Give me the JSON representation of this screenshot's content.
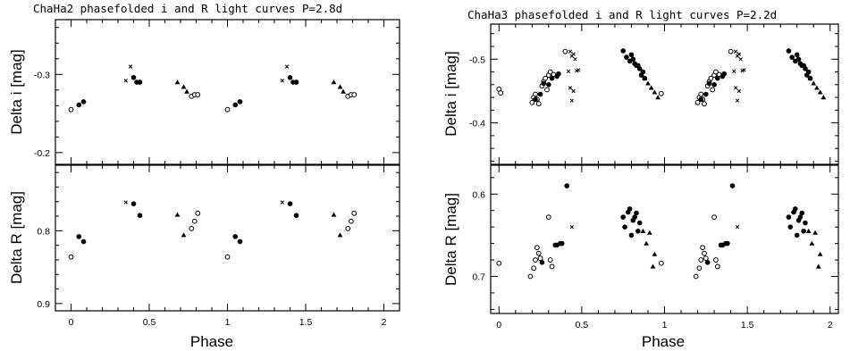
{
  "chart_data": [
    {
      "type": "scatter",
      "title": "ChaHa2 phasefolded i and R light curves  P=2.8d",
      "xlabel": "Phase",
      "xlim": [
        -0.1,
        2.1
      ],
      "xticks": [
        "0",
        "0.5",
        "1",
        "1.5",
        "2"
      ],
      "panels": [
        {
          "ylabel": "Delta i [mag]",
          "ylim": [
            -0.37,
            -0.185
          ],
          "yticks": [
            "-0.3",
            "-0.2"
          ],
          "series": [
            {
              "marker": "open-circle",
              "x": [
                0.0,
                0.77,
                0.79,
                0.81,
                1.0,
                1.77,
                1.79,
                1.81
              ],
              "y": [
                -0.255,
                -0.272,
                -0.274,
                -0.274,
                -0.255,
                -0.272,
                -0.274,
                -0.274
              ]
            },
            {
              "marker": "filled-circle",
              "x": [
                0.05,
                0.08,
                0.4,
                0.42,
                0.44,
                1.05,
                1.08,
                1.4,
                1.42,
                1.44
              ],
              "y": [
                -0.261,
                -0.265,
                -0.296,
                -0.29,
                -0.29,
                -0.261,
                -0.265,
                -0.296,
                -0.29,
                -0.29
              ]
            },
            {
              "marker": "triangle",
              "x": [
                0.68,
                0.72,
                0.74,
                1.68,
                1.72,
                1.74
              ],
              "y": [
                -0.29,
                -0.284,
                -0.278,
                -0.29,
                -0.284,
                -0.278
              ]
            },
            {
              "marker": "cross",
              "x": [
                0.35,
                0.38,
                1.35,
                1.38
              ],
              "y": [
                -0.292,
                -0.31,
                -0.292,
                -0.31
              ]
            }
          ]
        },
        {
          "ylabel": "Delta R [mag]",
          "ylim": [
            0.71,
            0.91
          ],
          "yticks": [
            "0.8",
            "0.9"
          ],
          "series": [
            {
              "marker": "open-circle",
              "x": [
                0.0,
                0.77,
                0.79,
                0.81,
                1.0,
                1.77,
                1.79,
                1.81
              ],
              "y": [
                0.836,
                0.797,
                0.787,
                0.776,
                0.836,
                0.797,
                0.787,
                0.776
              ]
            },
            {
              "marker": "filled-circle",
              "x": [
                0.05,
                0.08,
                0.4,
                0.44,
                1.05,
                1.08,
                1.4,
                1.44
              ],
              "y": [
                0.808,
                0.815,
                0.763,
                0.779,
                0.808,
                0.815,
                0.763,
                0.779
              ]
            },
            {
              "marker": "triangle",
              "x": [
                0.68,
                0.72,
                1.68,
                1.72
              ],
              "y": [
                0.778,
                0.806,
                0.778,
                0.806
              ]
            },
            {
              "marker": "cross",
              "x": [
                0.35,
                1.35
              ],
              "y": [
                0.761,
                0.761
              ]
            }
          ]
        }
      ]
    },
    {
      "type": "scatter",
      "title": "ChaHa3 phasefolded i and R light curves  P=2.2d",
      "xlabel": "Phase",
      "xlim": [
        -0.05,
        2.05
      ],
      "xticks": [
        "0",
        "0.5",
        "1",
        "1.5",
        "2"
      ],
      "panels": [
        {
          "ylabel": "Delta i [mag]",
          "ylim": [
            -0.555,
            -0.335
          ],
          "yticks": [
            "-0.5",
            "-0.4"
          ],
          "series": [
            {
              "marker": "open-circle",
              "x": [
                0.0,
                0.01,
                0.2,
                0.21,
                0.22,
                0.23,
                0.24,
                0.26,
                0.27,
                0.28,
                0.29,
                0.3,
                0.31,
                0.33,
                0.4,
                0.98,
                1.2,
                1.21,
                1.22,
                1.23,
                1.24,
                1.26,
                1.27,
                1.28,
                1.29,
                1.3,
                1.31,
                1.33,
                1.4
              ],
              "y": [
                -0.453,
                -0.447,
                -0.432,
                -0.44,
                -0.445,
                -0.437,
                -0.43,
                -0.458,
                -0.465,
                -0.47,
                -0.452,
                -0.475,
                -0.48,
                -0.476,
                -0.512,
                -0.446,
                -0.432,
                -0.44,
                -0.445,
                -0.437,
                -0.43,
                -0.458,
                -0.465,
                -0.47,
                -0.452,
                -0.475,
                -0.48,
                -0.476,
                -0.512
              ]
            },
            {
              "marker": "filled-circle",
              "x": [
                0.22,
                0.25,
                0.27,
                0.3,
                0.32,
                0.35,
                0.36,
                0.75,
                0.77,
                0.79,
                0.8,
                0.81,
                0.82,
                0.83,
                0.84,
                0.85,
                0.86,
                0.87,
                0.88,
                1.22,
                1.25,
                1.27,
                1.3,
                1.32,
                1.35,
                1.36,
                1.75,
                1.77,
                1.79,
                1.8,
                1.81,
                1.82,
                1.83,
                1.84,
                1.85,
                1.86,
                1.87,
                1.88
              ],
              "y": [
                -0.437,
                -0.445,
                -0.462,
                -0.46,
                -0.47,
                -0.473,
                -0.477,
                -0.513,
                -0.503,
                -0.497,
                -0.507,
                -0.5,
                -0.493,
                -0.49,
                -0.49,
                -0.485,
                -0.475,
                -0.48,
                -0.47,
                -0.437,
                -0.445,
                -0.462,
                -0.46,
                -0.47,
                -0.473,
                -0.477,
                -0.513,
                -0.503,
                -0.497,
                -0.507,
                -0.5,
                -0.493,
                -0.49,
                -0.49,
                -0.485,
                -0.475,
                -0.48,
                -0.47
              ]
            },
            {
              "marker": "triangle",
              "x": [
                0.88,
                0.9,
                0.92,
                0.94,
                0.96,
                1.88,
                1.9,
                1.92,
                1.94,
                1.96
              ],
              "y": [
                -0.47,
                -0.462,
                -0.455,
                -0.448,
                -0.44,
                -0.47,
                -0.462,
                -0.455,
                -0.448,
                -0.44
              ]
            },
            {
              "marker": "cross",
              "x": [
                0.43,
                0.44,
                0.45,
                0.46,
                0.47,
                0.48,
                0.42,
                0.43,
                0.44,
                0.45,
                1.43,
                1.44,
                1.45,
                1.46,
                1.47,
                1.48,
                1.42,
                1.43,
                1.44,
                1.45
              ],
              "y": [
                -0.512,
                -0.505,
                -0.508,
                -0.5,
                -0.482,
                -0.483,
                -0.481,
                -0.455,
                -0.435,
                -0.45,
                -0.512,
                -0.505,
                -0.508,
                -0.5,
                -0.482,
                -0.483,
                -0.481,
                -0.455,
                -0.435,
                -0.45
              ]
            }
          ]
        },
        {
          "ylabel": "Delta R [mag]",
          "ylim": [
            0.565,
            0.745
          ],
          "yticks": [
            "0.6",
            "0.7"
          ],
          "series": [
            {
              "marker": "open-circle",
              "x": [
                0.0,
                0.19,
                0.21,
                0.22,
                0.23,
                0.24,
                0.25,
                0.3,
                0.31,
                0.32,
                0.98,
                1.19,
                1.21,
                1.22,
                1.23,
                1.24,
                1.25,
                1.3,
                1.31,
                1.32
              ],
              "y": [
                0.684,
                0.7,
                0.69,
                0.68,
                0.665,
                0.672,
                0.678,
                0.628,
                0.68,
                0.688,
                0.684,
                0.7,
                0.69,
                0.68,
                0.665,
                0.672,
                0.678,
                0.628,
                0.68,
                0.688
              ]
            },
            {
              "marker": "filled-circle",
              "x": [
                0.26,
                0.34,
                0.35,
                0.37,
                0.38,
                0.41,
                0.75,
                0.76,
                0.78,
                0.79,
                0.8,
                0.81,
                0.82,
                0.83,
                0.84,
                0.85,
                1.26,
                1.34,
                1.35,
                1.37,
                1.38,
                1.41,
                1.75,
                1.76,
                1.78,
                1.79,
                1.8,
                1.81,
                1.82,
                1.83,
                1.84,
                1.85
              ],
              "y": [
                0.683,
                0.662,
                0.662,
                0.66,
                0.66,
                0.59,
                0.628,
                0.64,
                0.622,
                0.618,
                0.65,
                0.632,
                0.628,
                0.623,
                0.645,
                0.635,
                0.683,
                0.662,
                0.662,
                0.66,
                0.66,
                0.59,
                0.628,
                0.64,
                0.622,
                0.618,
                0.65,
                0.632,
                0.628,
                0.623,
                0.645,
                0.635
              ]
            },
            {
              "marker": "triangle",
              "x": [
                0.87,
                0.89,
                0.91,
                0.93,
                0.94,
                1.87,
                1.89,
                1.91,
                1.93,
                1.94
              ],
              "y": [
                0.645,
                0.66,
                0.647,
                0.688,
                0.673,
                0.645,
                0.66,
                0.647,
                0.688,
                0.673
              ]
            },
            {
              "marker": "cross",
              "x": [
                0.44,
                1.44
              ],
              "y": [
                0.64,
                0.64
              ]
            }
          ]
        }
      ]
    }
  ]
}
